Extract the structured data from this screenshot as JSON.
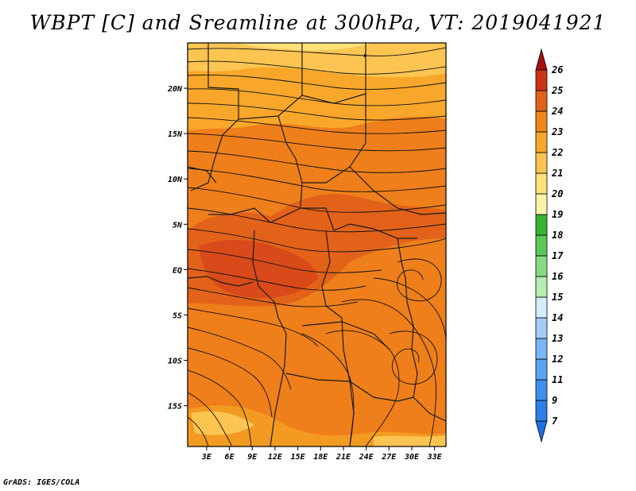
{
  "title": "WBPT [C] and Sreamline at 300hPa, VT: 2019041921",
  "credit": "GrADS: IGES/COLA",
  "map": {
    "lon_labels": [
      "3E",
      "6E",
      "9E",
      "12E",
      "15E",
      "18E",
      "21E",
      "24E",
      "27E",
      "30E",
      "33E"
    ],
    "lon_values": [
      3,
      6,
      9,
      12,
      15,
      18,
      21,
      24,
      27,
      30,
      33
    ],
    "lat_labels": [
      "20N",
      "15N",
      "10N",
      "5N",
      "EQ",
      "5S",
      "10S",
      "15S"
    ],
    "lat_values": [
      20,
      15,
      10,
      5,
      0,
      -5,
      -10,
      -15
    ],
    "lon_range": [
      0.5,
      34.5
    ],
    "lat_range": [
      -19.5,
      25
    ]
  },
  "colorbar": {
    "labels": [
      "7",
      "9",
      "11",
      "12",
      "13",
      "14",
      "15",
      "16",
      "17",
      "18",
      "19",
      "20",
      "21",
      "22",
      "23",
      "24",
      "25",
      "26"
    ],
    "colors": [
      "#1e6fe0",
      "#2c7fe6",
      "#3d8fee",
      "#5aa3f2",
      "#7ab6f5",
      "#a2cdf9",
      "#d4ecfb",
      "#b8ecb0",
      "#88db82",
      "#5cc858",
      "#35b332",
      "#fbf3a8",
      "#fde07a",
      "#fcc552",
      "#f8a72a",
      "#f08719",
      "#e2621a",
      "#c83418",
      "#a80f0f"
    ]
  }
}
